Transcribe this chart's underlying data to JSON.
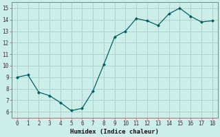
{
  "x_pts": [
    0,
    1,
    2,
    3,
    4,
    5,
    6,
    7,
    8,
    9,
    10,
    11,
    12,
    13,
    14,
    15,
    16,
    17,
    18
  ],
  "y_pts": [
    9.0,
    9.2,
    7.7,
    7.4,
    6.8,
    6.1,
    6.3,
    7.8,
    10.1,
    12.5,
    13.0,
    14.1,
    13.9,
    13.5,
    14.5,
    15.0,
    14.3,
    13.8,
    13.9
  ],
  "xlabel": "Humidex (Indice chaleur)",
  "xlim": [
    -0.5,
    18.5
  ],
  "ylim": [
    5.5,
    15.5
  ],
  "xticks": [
    0,
    1,
    2,
    3,
    4,
    5,
    6,
    7,
    8,
    9,
    10,
    11,
    12,
    13,
    14,
    15,
    16,
    17,
    18
  ],
  "yticks": [
    6,
    7,
    8,
    9,
    10,
    11,
    12,
    13,
    14,
    15
  ],
  "line_color": "#006060",
  "marker_color": "#006060",
  "bg_color": "#cceee8",
  "grid_color": "#aacccc",
  "spine_color": "#997777",
  "tick_label_color": "#333333",
  "xlabel_color": "#111111",
  "figsize": [
    3.2,
    2.0
  ],
  "dpi": 100
}
